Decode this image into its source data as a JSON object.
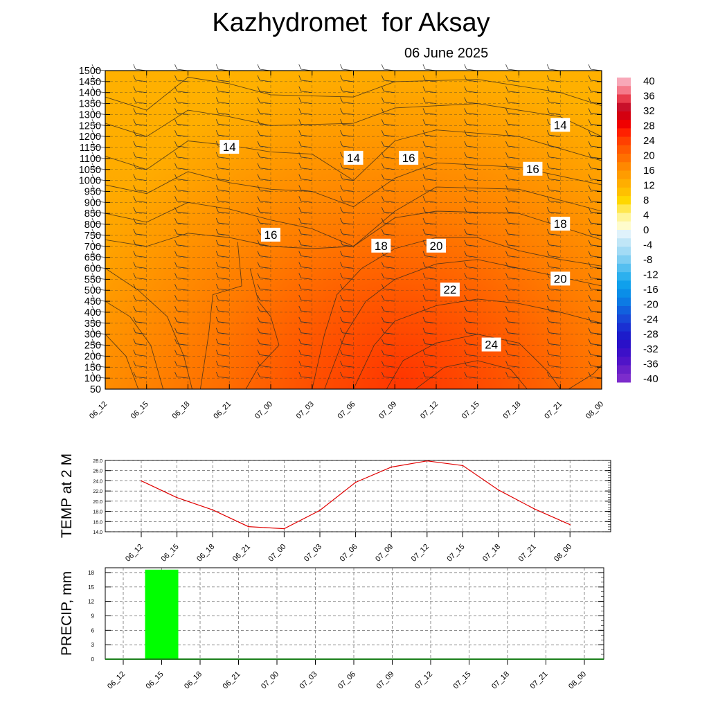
{
  "title": "Kazhydromet  for Aksay",
  "subtitle": "06 June 2025",
  "chart_data": [
    {
      "type": "heatmap",
      "description_kind": "vertical cross-section of temperature with contour labels and wind barbs",
      "x_ticks": [
        "06_12",
        "06_15",
        "06_18",
        "06_21",
        "07_00",
        "07_03",
        "07_06",
        "07_09",
        "07_12",
        "07_15",
        "07_18",
        "07_21",
        "08_00"
      ],
      "y_ticks": [
        50,
        100,
        150,
        200,
        250,
        300,
        350,
        400,
        450,
        500,
        550,
        600,
        650,
        700,
        750,
        800,
        850,
        900,
        950,
        1000,
        1050,
        1100,
        1150,
        1200,
        1250,
        1300,
        1350,
        1400,
        1450,
        1500
      ],
      "colorbar_ticks": [
        40,
        36,
        32,
        28,
        24,
        20,
        16,
        12,
        8,
        4,
        0,
        -4,
        -8,
        -12,
        -16,
        -20,
        -24,
        -28,
        -32,
        -36,
        -40
      ],
      "contour_labels": [
        {
          "text": "14",
          "t": "06_21",
          "h": 1150
        },
        {
          "text": "14",
          "t": "07_06",
          "h": 1100
        },
        {
          "text": "16",
          "t": "07_10",
          "h": 1100
        },
        {
          "text": "14",
          "t": "07_21",
          "h": 1250
        },
        {
          "text": "16",
          "t": "07_19",
          "h": 1050
        },
        {
          "text": "16",
          "t": "07_00",
          "h": 750
        },
        {
          "text": "18",
          "t": "07_08",
          "h": 700
        },
        {
          "text": "20",
          "t": "07_12",
          "h": 700
        },
        {
          "text": "18",
          "t": "07_21",
          "h": 800
        },
        {
          "text": "22",
          "t": "07_13",
          "h": 500
        },
        {
          "text": "20",
          "t": "07_21",
          "h": 550
        },
        {
          "text": "24",
          "t": "07_16",
          "h": 250
        }
      ]
    },
    {
      "type": "line",
      "ylabel": "TEMP at 2 M",
      "x": [
        "06_12",
        "06_15",
        "06_18",
        "06_21",
        "07_00",
        "07_03",
        "07_06",
        "07_09",
        "07_12",
        "07_15",
        "07_18",
        "07_21",
        "08_00"
      ],
      "values": [
        24.0,
        20.7,
        18.3,
        15.0,
        14.6,
        18.2,
        23.7,
        26.7,
        27.9,
        27.0,
        22.2,
        18.5,
        15.4
      ],
      "y_ticks": [
        "14.0",
        "16.0",
        "18.0",
        "20.0",
        "22.0",
        "24.0",
        "26.0",
        "28.0"
      ],
      "ylim": [
        14,
        28
      ],
      "color": "#e00000"
    },
    {
      "type": "bar",
      "ylabel": "PRECIP, mm",
      "x": [
        "06_12",
        "06_15",
        "06_18",
        "06_21",
        "07_00",
        "07_03",
        "07_06",
        "07_09",
        "07_12",
        "07_15",
        "07_18",
        "07_21",
        "08_00"
      ],
      "values": [
        0,
        18.6,
        0,
        0,
        0,
        0,
        0,
        0,
        0,
        0,
        0,
        0,
        0
      ],
      "y_ticks": [
        "0",
        "3",
        "6",
        "9",
        "12",
        "15",
        "18"
      ],
      "ylim": [
        0,
        19
      ],
      "color": "#00ff00"
    }
  ]
}
